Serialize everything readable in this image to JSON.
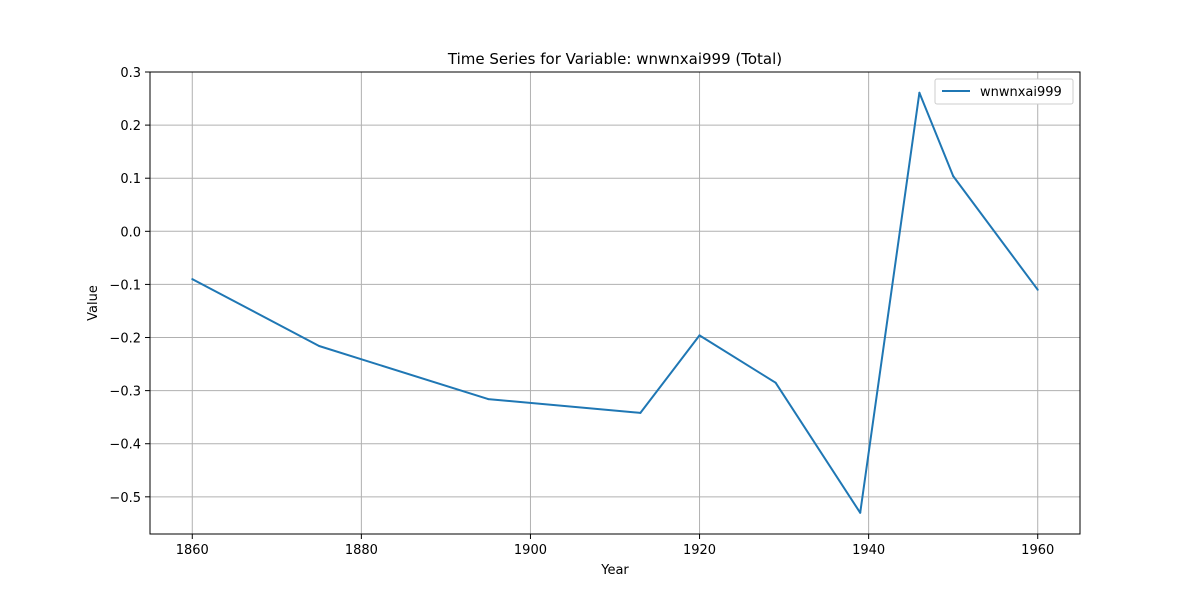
{
  "chart_data": {
    "type": "line",
    "title": "Time Series for Variable: wnwnxai999 (Total)",
    "xlabel": "Year",
    "ylabel": "Value",
    "xlim": [
      1855,
      1965
    ],
    "ylim": [
      -0.57,
      0.3
    ],
    "x_ticks": [
      1860,
      1880,
      1900,
      1920,
      1940,
      1960
    ],
    "y_ticks": [
      -0.5,
      -0.4,
      -0.3,
      -0.2,
      -0.1,
      0.0,
      0.1,
      0.2,
      0.3
    ],
    "y_tick_labels": [
      "−0.5",
      "−0.4",
      "−0.3",
      "−0.2",
      "−0.1",
      "0.0",
      "0.1",
      "0.2",
      "0.3"
    ],
    "grid": true,
    "legend_position": "top-right",
    "series": [
      {
        "name": "wnwnxai999",
        "color": "#1f77b4",
        "x": [
          1860,
          1875,
          1895,
          1913,
          1920,
          1929,
          1939,
          1946,
          1950,
          1960
        ],
        "y": [
          -0.09,
          -0.216,
          -0.316,
          -0.342,
          -0.196,
          -0.285,
          -0.53,
          0.261,
          0.104,
          -0.11
        ]
      }
    ]
  }
}
